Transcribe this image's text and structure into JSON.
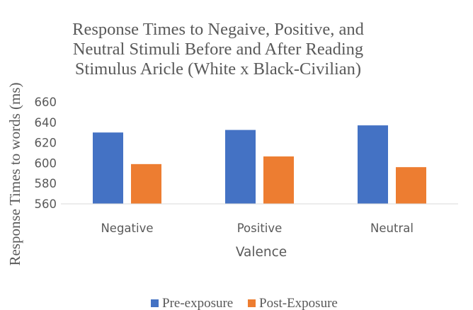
{
  "chart_data": {
    "type": "bar",
    "title_lines": [
      "Response Times to Negaive, Positive, and",
      "Neutral Stimuli Before and After Reading",
      "Stimulus Aricle (White x Black-Civilian)"
    ],
    "xlabel": "Valence",
    "ylabel": "Response Times to words (ms)",
    "categories": [
      "Negative",
      "Positive",
      "Neutral"
    ],
    "series": [
      {
        "name": "Pre-exposure",
        "color": "#4472C4",
        "values": [
          630,
          632.5,
          637
        ]
      },
      {
        "name": "Post-Exposure",
        "color": "#ED7D31",
        "values": [
          599,
          606.5,
          596
        ]
      }
    ],
    "ylim": [
      560,
      660
    ],
    "yticks": [
      "560",
      "580",
      "600",
      "620",
      "640",
      "660"
    ],
    "legend_position": "bottom",
    "grid": false
  }
}
